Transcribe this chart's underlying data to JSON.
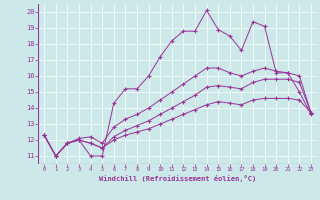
{
  "xlabel": "Windchill (Refroidissement éolien,°C)",
  "background_color": "#cce8e8",
  "grid_color": "#b0d8d8",
  "line_color": "#993399",
  "marker": "+",
  "xlim": [
    -0.5,
    23.5
  ],
  "ylim": [
    10.5,
    20.5
  ],
  "yticks": [
    11,
    12,
    13,
    14,
    15,
    16,
    17,
    18,
    19,
    20
  ],
  "xticks": [
    0,
    1,
    2,
    3,
    4,
    5,
    6,
    7,
    8,
    9,
    10,
    11,
    12,
    13,
    14,
    15,
    16,
    17,
    18,
    19,
    20,
    21,
    22,
    23
  ],
  "series": [
    [
      12.3,
      11.0,
      11.8,
      12.0,
      11.0,
      11.0,
      14.3,
      15.2,
      15.2,
      16.0,
      17.2,
      18.2,
      18.8,
      18.8,
      20.1,
      18.9,
      18.5,
      17.6,
      19.4,
      19.1,
      16.2,
      16.2,
      15.0,
      13.6
    ],
    [
      12.3,
      11.0,
      11.8,
      12.1,
      12.2,
      11.8,
      12.8,
      13.3,
      13.6,
      14.0,
      14.5,
      15.0,
      15.5,
      16.0,
      16.5,
      16.5,
      16.2,
      16.0,
      16.3,
      16.5,
      16.3,
      16.2,
      16.0,
      13.7
    ],
    [
      12.3,
      11.0,
      11.8,
      12.0,
      11.8,
      11.5,
      12.2,
      12.6,
      12.9,
      13.2,
      13.6,
      14.0,
      14.4,
      14.8,
      15.3,
      15.4,
      15.3,
      15.2,
      15.6,
      15.8,
      15.8,
      15.8,
      15.6,
      13.7
    ],
    [
      12.3,
      11.0,
      11.8,
      12.0,
      11.8,
      11.5,
      12.0,
      12.3,
      12.5,
      12.7,
      13.0,
      13.3,
      13.6,
      13.9,
      14.2,
      14.4,
      14.3,
      14.2,
      14.5,
      14.6,
      14.6,
      14.6,
      14.5,
      13.7
    ]
  ]
}
